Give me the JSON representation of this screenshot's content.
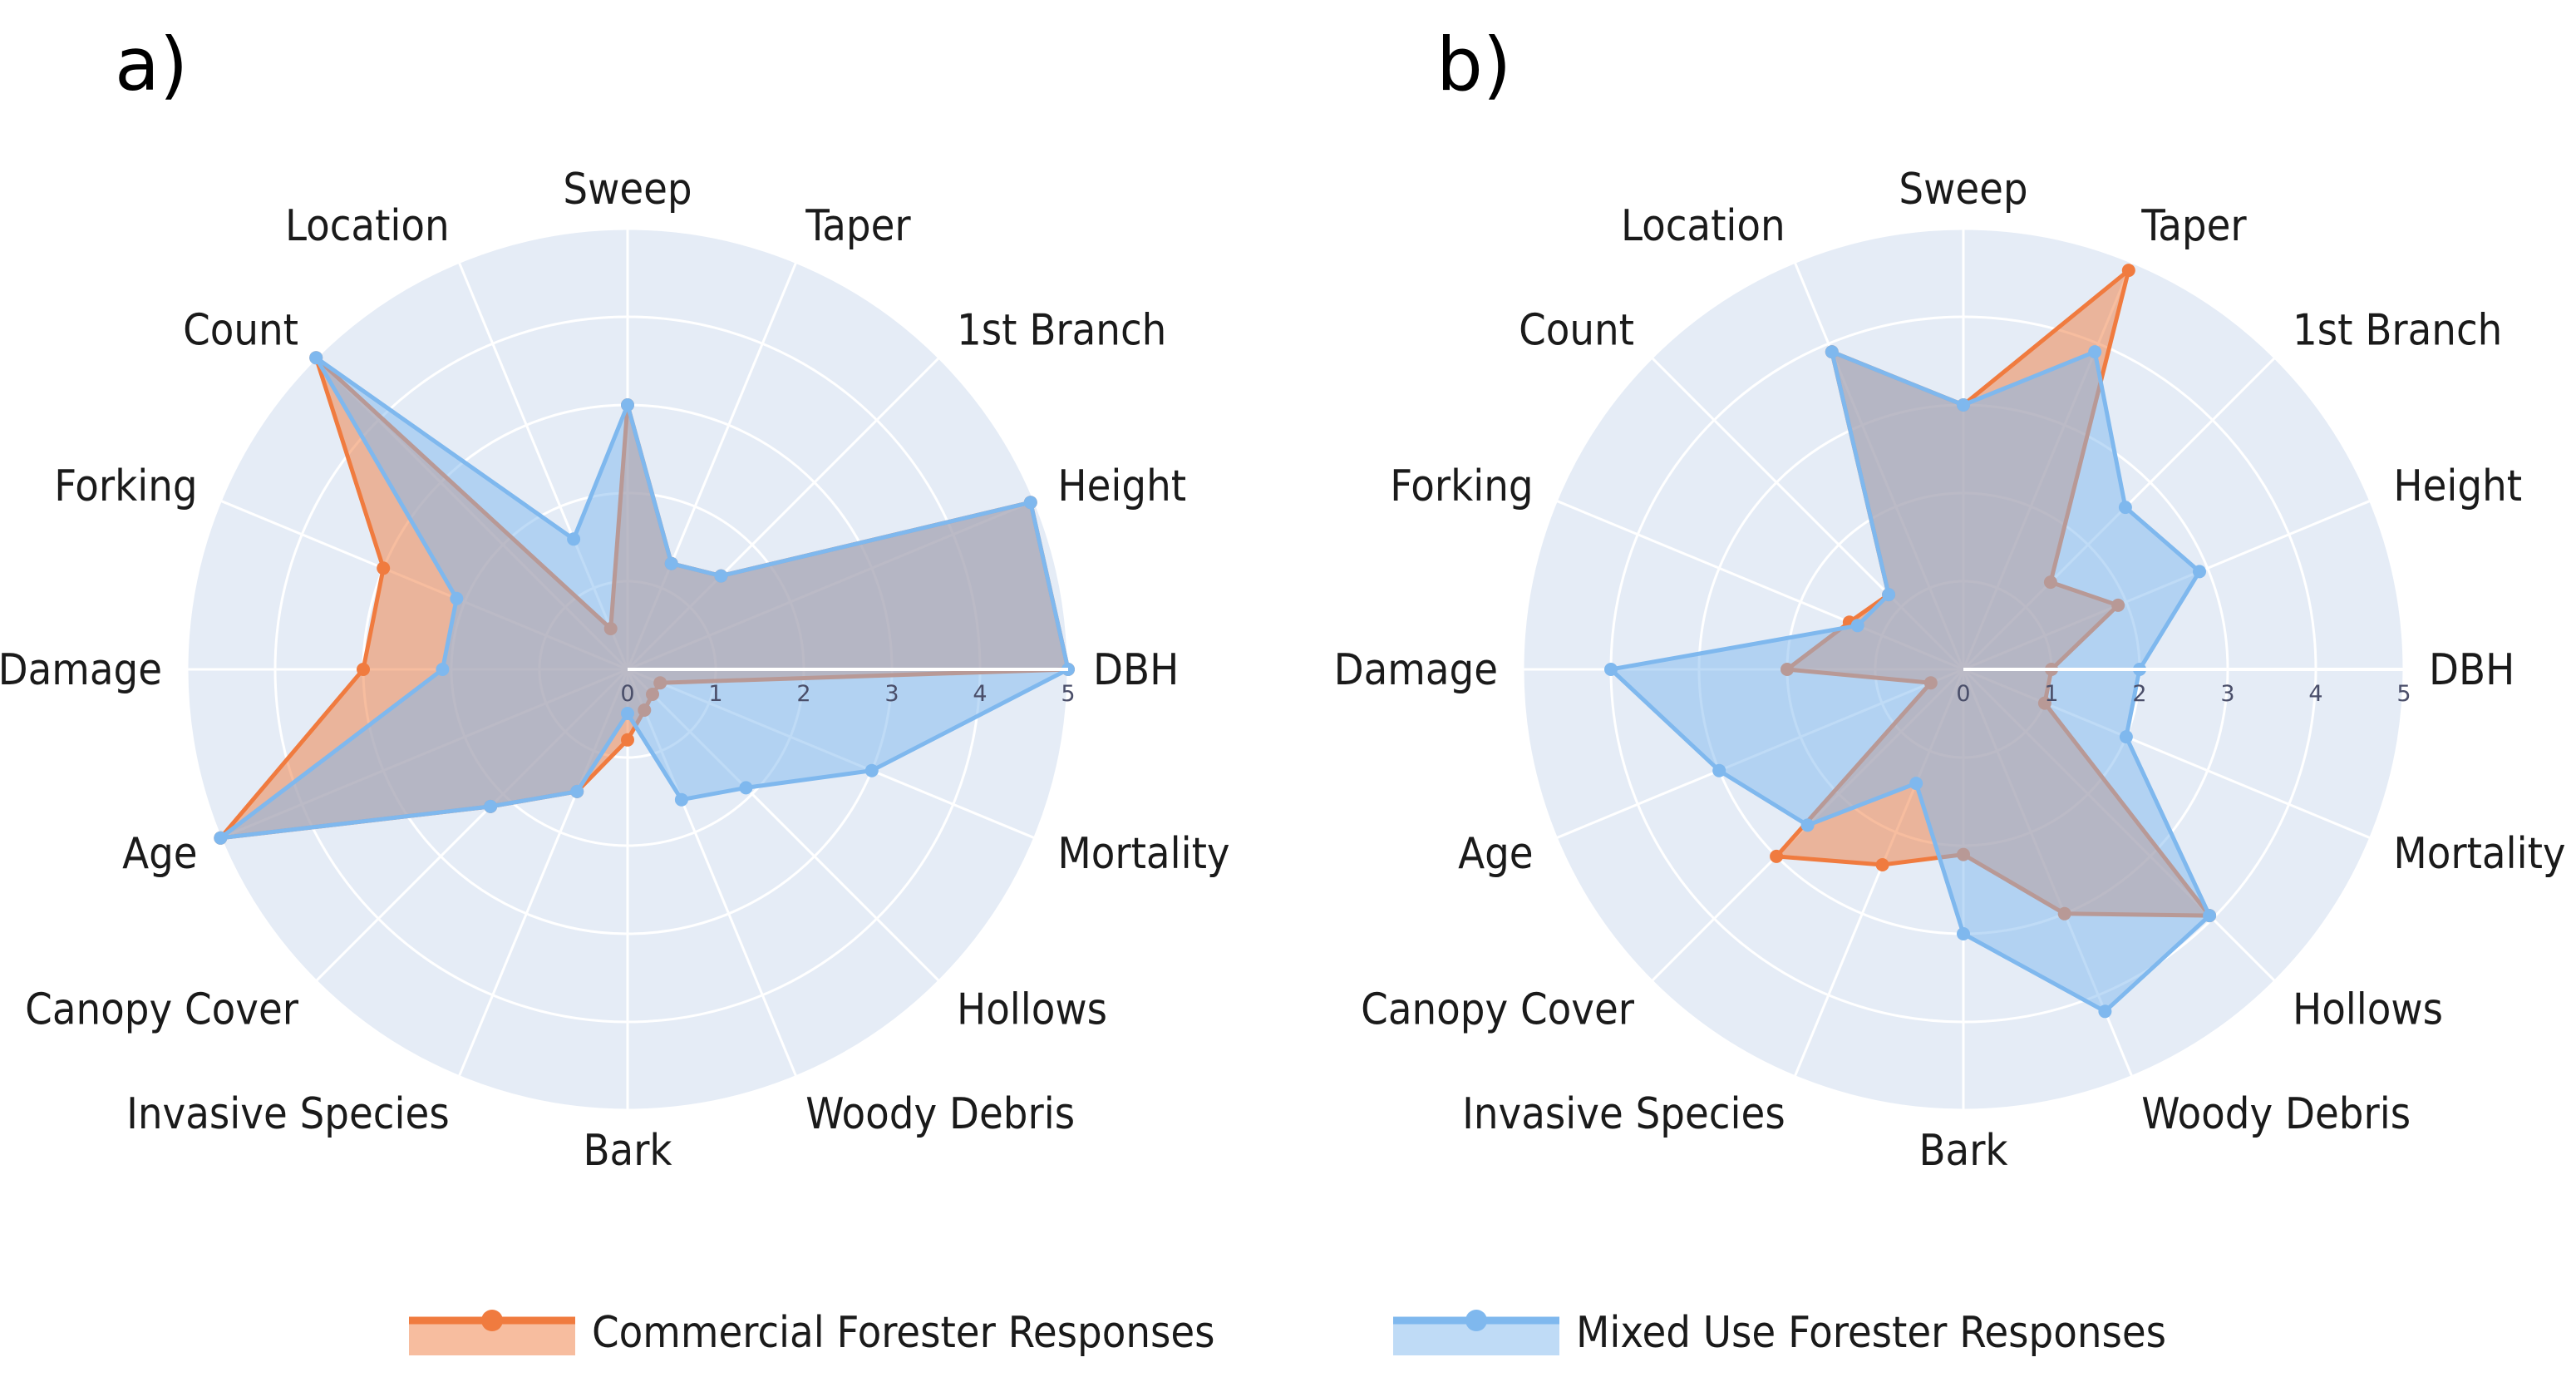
{
  "chart_data": [
    {
      "type": "radar",
      "panel_label": "a)",
      "axes": [
        "DBH",
        "Height",
        "1st Branch",
        "Taper",
        "Sweep",
        "Location",
        "Count",
        "Forking",
        "Damage",
        "Age",
        "Canopy Cover",
        "Invasive Species",
        "Bark",
        "Woody Debris",
        "Hollows",
        "Mortality"
      ],
      "radial_range": [
        0,
        5
      ],
      "radial_ticks": [
        "0",
        "1",
        "2",
        "3",
        "4",
        "5"
      ],
      "series": [
        {
          "name": "Commercial Forester Responses",
          "color": "#f07b3f",
          "values": [
            5,
            4.95,
            1.5,
            1.3,
            3,
            0.5,
            5,
            3,
            3,
            5,
            2.2,
            1.5,
            0.8,
            0.5,
            0.4,
            0.4
          ]
        },
        {
          "name": "Mixed Use Forester Responses",
          "color": "#7fb8ee",
          "values": [
            5,
            4.95,
            1.5,
            1.3,
            3,
            1.6,
            5,
            2.1,
            2.1,
            5,
            2.2,
            1.5,
            0.5,
            1.6,
            1.9,
            3
          ]
        }
      ]
    },
    {
      "type": "radar",
      "panel_label": "b)",
      "axes": [
        "DBH",
        "Height",
        "1st Branch",
        "Taper",
        "Sweep",
        "Location",
        "Count",
        "Forking",
        "Damage",
        "Age",
        "Canopy Cover",
        "Invasive Species",
        "Bark",
        "Woody Debris",
        "Hollows",
        "Mortality"
      ],
      "radial_range": [
        0,
        5
      ],
      "radial_ticks": [
        "0",
        "1",
        "2",
        "3",
        "4",
        "5"
      ],
      "series": [
        {
          "name": "Commercial Forester Responses",
          "color": "#f07b3f",
          "values": [
            1,
            1.9,
            1.4,
            4.9,
            3,
            3.9,
            1.2,
            1.4,
            2,
            0.4,
            3,
            2.4,
            2.1,
            3,
            3.95,
            1
          ]
        },
        {
          "name": "Mixed Use Forester Responses",
          "color": "#7fb8ee",
          "values": [
            2,
            2.9,
            2.6,
            3.9,
            3,
            3.9,
            1.2,
            1.3,
            4,
            3,
            2.5,
            1.4,
            3,
            4.2,
            3.95,
            2
          ]
        }
      ]
    }
  ],
  "legend": {
    "commercial_label": "Commercial Forester Responses",
    "mixed_label": "Mixed Use Forester Responses"
  }
}
